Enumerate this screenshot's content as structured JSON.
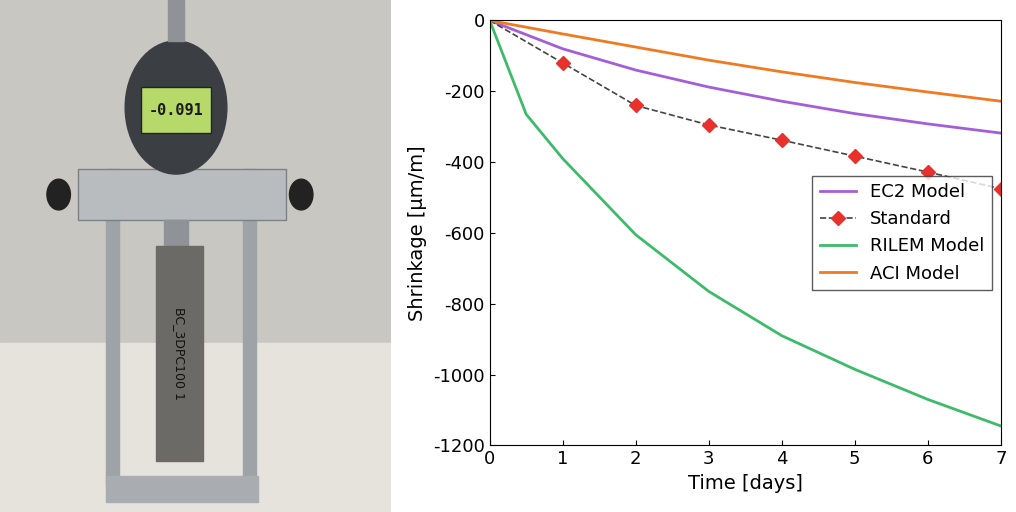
{
  "chart_data": {
    "type": "line",
    "x_label": "Time [days]",
    "y_label": "Shrinkage [μm/m]",
    "xlim": [
      0,
      7
    ],
    "xticks": [
      0,
      1,
      2,
      3,
      4,
      5,
      6,
      7
    ],
    "ylim": [
      -1200,
      0
    ],
    "yticks": [
      -1200,
      -1000,
      -800,
      -600,
      -400,
      -200,
      0
    ],
    "legend": "center right",
    "series": [
      {
        "name": "EC2 Model",
        "color": "#a45fd8",
        "line_style": "solid",
        "marker": "none",
        "x": [
          0,
          1,
          2,
          3,
          4,
          5,
          6,
          7
        ],
        "values": [
          0,
          -80,
          -140,
          -188,
          -228,
          -263,
          -292,
          -318
        ]
      },
      {
        "name": "Standard",
        "color": "#e8302c",
        "line_style": "dashed",
        "marker": "diamond",
        "x": [
          0,
          1,
          2,
          3,
          4,
          5,
          6,
          7
        ],
        "values": [
          0,
          -120,
          -240,
          -295,
          -338,
          -383,
          -428,
          -475
        ]
      },
      {
        "name": "RILEM Model",
        "color": "#3dbb6a",
        "line_style": "solid",
        "marker": "none",
        "x": [
          0,
          0.5,
          1,
          2,
          3,
          4,
          5,
          6,
          7
        ],
        "values": [
          0,
          -265,
          -390,
          -605,
          -765,
          -890,
          -985,
          -1070,
          -1145
        ]
      },
      {
        "name": "ACI Model",
        "color": "#f07a22",
        "line_style": "solid",
        "marker": "none",
        "x": [
          0,
          1,
          2,
          3,
          4,
          5,
          6,
          7
        ],
        "values": [
          0,
          -38,
          -75,
          -112,
          -145,
          -175,
          -202,
          -228
        ]
      }
    ]
  },
  "photo": {
    "gauge_reading": "-0.091",
    "specimen_label": "BC_3DPC100 1"
  }
}
